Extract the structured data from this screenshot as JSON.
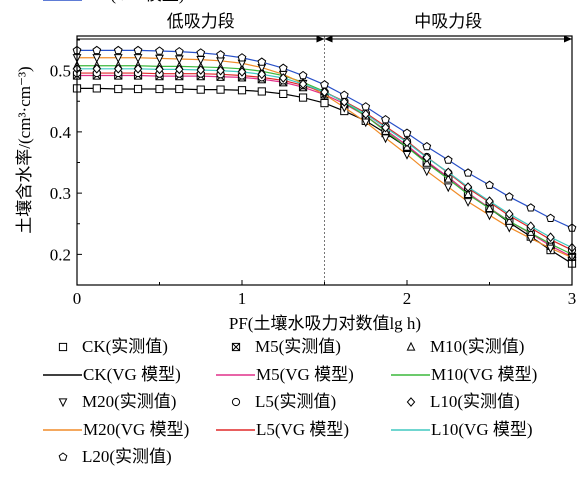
{
  "chart_data": {
    "type": "line",
    "xlabel": "PF(土壤水吸力对数值lg h)",
    "ylabel": "土壤含水率/(cm³·cm⁻³)",
    "xlim": [
      0,
      3
    ],
    "ylim": [
      0.15,
      0.55
    ],
    "x_ticks": [
      "0",
      "1",
      "2",
      "3"
    ],
    "y_ticks": [
      "0.2",
      "0.3",
      "0.4",
      "0.5"
    ],
    "region_divider_x": 1.5,
    "regions": [
      {
        "label": "低吸力段",
        "from": 0,
        "to": 1.5
      },
      {
        "label": "中吸力段",
        "from": 1.5,
        "to": 3
      }
    ],
    "x": [
      0,
      0.12,
      0.25,
      0.37,
      0.5,
      0.62,
      0.75,
      0.87,
      1.0,
      1.12,
      1.25,
      1.37,
      1.5,
      1.62,
      1.75,
      1.87,
      2.0,
      2.12,
      2.25,
      2.37,
      2.5,
      2.62,
      2.75,
      2.87,
      3.0
    ],
    "series": [
      {
        "key": "CK",
        "obs_label": "CK(实测值)",
        "model_label": "CK(VG 模型)",
        "marker": "square",
        "color": "#000000",
        "values": [
          0.471,
          0.471,
          0.47,
          0.47,
          0.47,
          0.47,
          0.469,
          0.469,
          0.468,
          0.466,
          0.462,
          0.456,
          0.447,
          0.434,
          0.418,
          0.398,
          0.375,
          0.351,
          0.326,
          0.3,
          0.275,
          0.252,
          0.229,
          0.207,
          0.185
        ]
      },
      {
        "key": "M5",
        "obs_label": "M5(实测值)",
        "model_label": "M5(VG 模型)",
        "marker": "boxx",
        "color": "#e0308a",
        "values": [
          0.492,
          0.492,
          0.492,
          0.492,
          0.491,
          0.491,
          0.491,
          0.49,
          0.489,
          0.486,
          0.481,
          0.473,
          0.461,
          0.446,
          0.426,
          0.403,
          0.378,
          0.352,
          0.326,
          0.3,
          0.276,
          0.254,
          0.234,
          0.214,
          0.196
        ]
      },
      {
        "key": "M10",
        "obs_label": "M10(实测值)",
        "model_label": "M10(VG 模型)",
        "marker": "triangle",
        "color": "#3cb83c",
        "values": [
          0.508,
          0.508,
          0.508,
          0.508,
          0.507,
          0.507,
          0.506,
          0.505,
          0.503,
          0.499,
          0.492,
          0.481,
          0.466,
          0.448,
          0.426,
          0.401,
          0.375,
          0.349,
          0.323,
          0.298,
          0.275,
          0.254,
          0.235,
          0.217,
          0.2
        ]
      },
      {
        "key": "M20",
        "obs_label": "M20(实测值)",
        "model_label": "M20(VG 模型)",
        "marker": "triangle-down",
        "color": "#f08c28",
        "values": [
          0.521,
          0.521,
          0.521,
          0.521,
          0.52,
          0.519,
          0.518,
          0.516,
          0.512,
          0.505,
          0.494,
          0.479,
          0.461,
          0.44,
          0.416,
          0.39,
          0.363,
          0.336,
          0.31,
          0.286,
          0.264,
          0.244,
          0.226,
          0.21,
          0.195
        ]
      },
      {
        "key": "L5",
        "obs_label": "L5(实测值)",
        "model_label": "L5(VG 模型)",
        "marker": "circle",
        "color": "#e02828",
        "values": [
          0.496,
          0.496,
          0.496,
          0.496,
          0.495,
          0.495,
          0.495,
          0.494,
          0.492,
          0.489,
          0.484,
          0.476,
          0.465,
          0.45,
          0.431,
          0.409,
          0.385,
          0.359,
          0.333,
          0.308,
          0.285,
          0.263,
          0.243,
          0.224,
          0.207
        ]
      },
      {
        "key": "L10",
        "obs_label": "L10(实测值)",
        "model_label": "L10(VG 模型)",
        "marker": "diamond",
        "color": "#40c8c0",
        "values": [
          0.503,
          0.503,
          0.503,
          0.503,
          0.502,
          0.502,
          0.501,
          0.5,
          0.498,
          0.494,
          0.488,
          0.478,
          0.465,
          0.449,
          0.429,
          0.407,
          0.383,
          0.358,
          0.334,
          0.31,
          0.287,
          0.266,
          0.246,
          0.228,
          0.211
        ]
      },
      {
        "key": "L20",
        "obs_label": "L20(实测值)",
        "model_label": "L20(VG 模型)",
        "marker": "pentagon",
        "color": "#2850c8",
        "values": [
          0.533,
          0.533,
          0.533,
          0.533,
          0.532,
          0.531,
          0.529,
          0.526,
          0.521,
          0.514,
          0.504,
          0.492,
          0.477,
          0.46,
          0.441,
          0.42,
          0.398,
          0.376,
          0.354,
          0.333,
          0.313,
          0.294,
          0.276,
          0.259,
          0.243
        ]
      }
    ]
  }
}
